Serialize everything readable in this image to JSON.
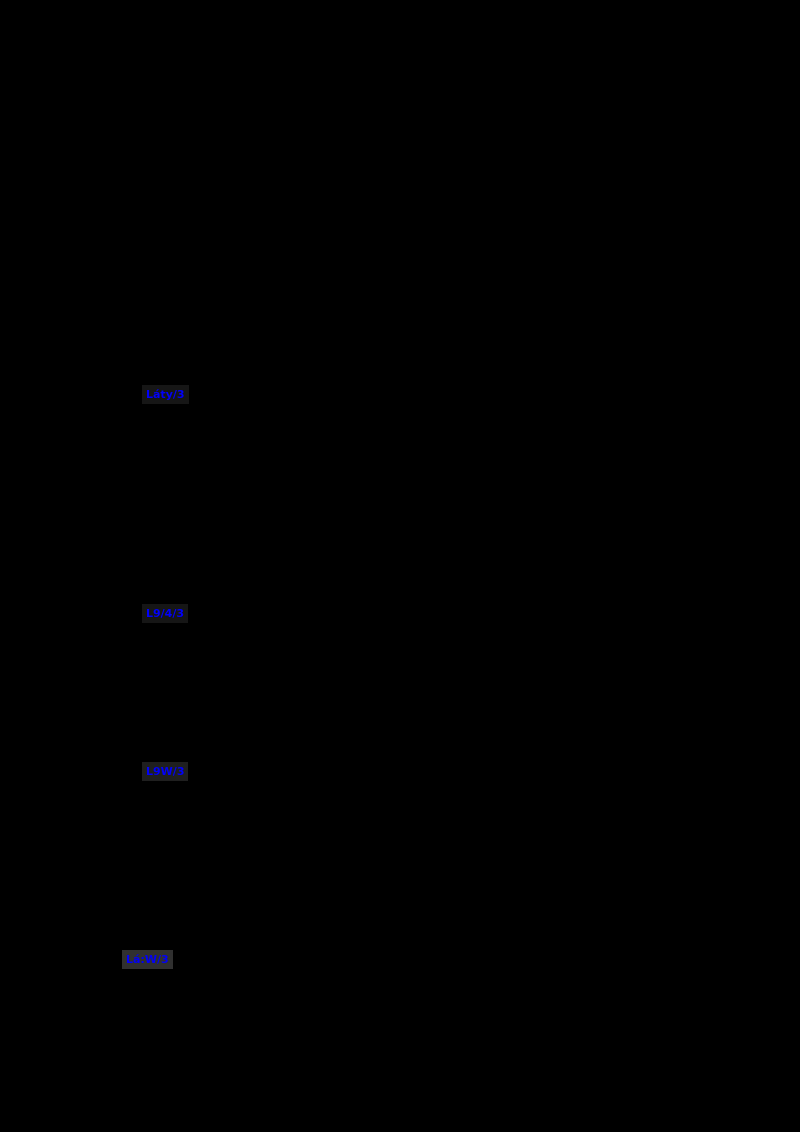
{
  "page": {
    "background_color": "#000000",
    "description": "Black A4 document page with four small blue link stamps"
  },
  "colors": {
    "link_text": "#0100fa",
    "highlight_box_faint": "#161616",
    "highlight_box_medium": "#1f1f1f",
    "highlight_box_visible": "#303030"
  },
  "links": [
    {
      "label": "Láty/3",
      "box": "#161616"
    },
    {
      "label": "L9/4/3",
      "box": "#161616"
    },
    {
      "label": "L9W/3",
      "box": "#1f1f1f"
    },
    {
      "label": "Lá:W/3",
      "box": "#303030"
    }
  ]
}
